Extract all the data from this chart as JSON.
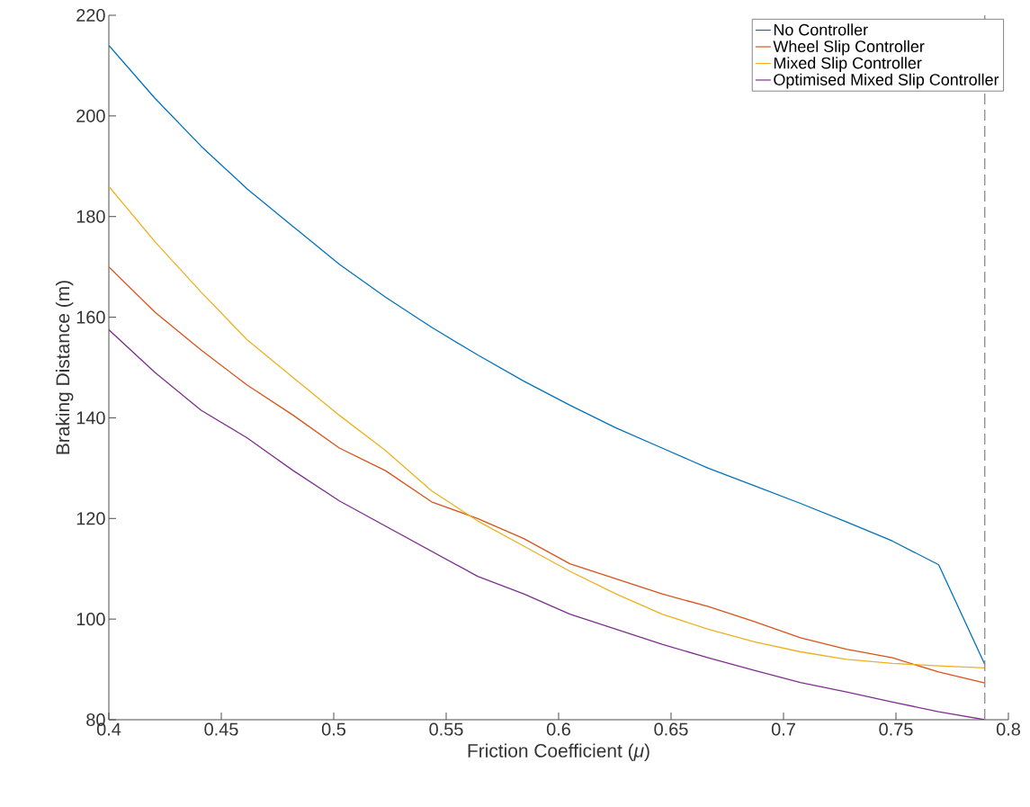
{
  "chart_data": {
    "type": "line",
    "xlabel": "Friction Coefficient (*μ*)",
    "ylabel": "Braking Distance (m)",
    "x": [
      0.4,
      0.4205,
      0.441,
      0.4615,
      0.482,
      0.5025,
      0.523,
      0.5435,
      0.564,
      0.5845,
      0.605,
      0.6255,
      0.646,
      0.6665,
      0.687,
      0.7075,
      0.728,
      0.7485,
      0.769,
      0.7895
    ],
    "series": [
      {
        "name": "No Controller",
        "color": "#0072bd",
        "values": [
          214,
          203.5,
          194,
          185.5,
          178,
          170.5,
          164,
          158,
          152.5,
          147.3,
          142.5,
          138,
          134,
          130,
          126.5,
          123,
          119.3,
          115.5,
          110.8,
          91
        ]
      },
      {
        "name": "Wheel Slip Controller",
        "color": "#d95319",
        "values": [
          170,
          161,
          153.5,
          146.5,
          140.5,
          134,
          129.5,
          123.3,
          120,
          116,
          111,
          108,
          105,
          102.5,
          99.5,
          96.3,
          94,
          92.3,
          89.5,
          87.3
        ]
      },
      {
        "name": "Mixed Slip Controller",
        "color": "#edb120",
        "values": [
          186,
          175,
          165,
          155.5,
          148,
          140.5,
          133.5,
          125.5,
          119.5,
          114.5,
          109.5,
          105,
          101,
          98,
          95.5,
          93.5,
          92,
          91.2,
          90.7,
          90.3
        ]
      },
      {
        "name": "Optimised Mixed Slip Controller",
        "color": "#7e2f8e",
        "values": [
          157.5,
          149,
          141.5,
          136,
          129.5,
          123.5,
          118.5,
          113.5,
          108.5,
          105,
          101,
          98,
          95,
          92.3,
          89.8,
          87.4,
          85.5,
          83.5,
          81.6,
          80
        ]
      }
    ],
    "xlim": [
      0.4,
      0.8
    ],
    "ylim": [
      80,
      220
    ],
    "xticks": [
      0.4,
      0.45,
      0.5,
      0.55,
      0.6,
      0.65,
      0.7,
      0.75,
      0.8
    ],
    "yticks": [
      80,
      100,
      120,
      140,
      160,
      180,
      200,
      220
    ],
    "ref_lines": [
      {
        "axis": "x",
        "value": 0.7895,
        "color": "#808080",
        "line_style": "dashed"
      }
    ],
    "legend": "top right",
    "grid": false,
    "marker": "none",
    "line_style": "solid"
  }
}
